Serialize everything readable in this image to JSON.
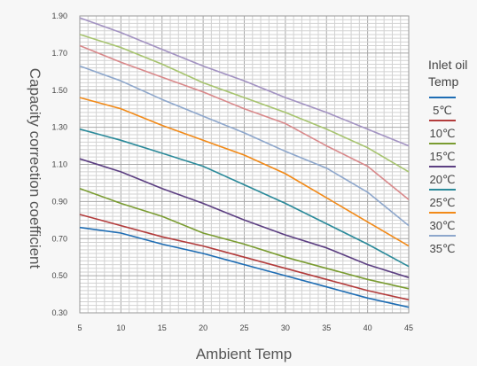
{
  "chart_data": {
    "type": "line",
    "xlabel": "Ambient Temp",
    "ylabel": "Capacity correction coefficient",
    "xlim": [
      5,
      45
    ],
    "ylim": [
      0.3,
      1.9
    ],
    "xticks": [
      5,
      10,
      15,
      20,
      25,
      30,
      35,
      40,
      45
    ],
    "yticks": [
      "0.30",
      "0.50",
      "0.70",
      "0.90",
      "1.10",
      "1.30",
      "1.50",
      "1.70",
      "1.90"
    ],
    "grid": true,
    "legend": {
      "placement": "right",
      "title_lines": [
        "Inlet oil",
        "Temp"
      ]
    },
    "series": [
      {
        "name": "5℃",
        "color": "#1e6db4",
        "x": [
          5,
          10,
          15,
          20,
          25,
          30,
          35,
          40,
          45
        ],
        "y": [
          0.76,
          0.73,
          0.67,
          0.62,
          0.56,
          0.5,
          0.44,
          0.38,
          0.33
        ]
      },
      {
        "name": "10℃",
        "color": "#b33c3c",
        "x": [
          5,
          10,
          15,
          20,
          25,
          30,
          35,
          40,
          45
        ],
        "y": [
          0.83,
          0.77,
          0.71,
          0.66,
          0.6,
          0.54,
          0.48,
          0.42,
          0.37
        ]
      },
      {
        "name": "15℃",
        "color": "#7a9c31",
        "x": [
          5,
          10,
          15,
          20,
          25,
          30,
          35,
          40,
          45
        ],
        "y": [
          0.97,
          0.89,
          0.82,
          0.73,
          0.67,
          0.6,
          0.54,
          0.48,
          0.43
        ]
      },
      {
        "name": "20℃",
        "color": "#5c3f82",
        "x": [
          5,
          10,
          15,
          20,
          25,
          30,
          35,
          40,
          45
        ],
        "y": [
          1.13,
          1.06,
          0.97,
          0.89,
          0.8,
          0.72,
          0.65,
          0.56,
          0.49
        ]
      },
      {
        "name": "25℃",
        "color": "#2b8a9a",
        "x": [
          5,
          10,
          15,
          20,
          25,
          30,
          35,
          40,
          45
        ],
        "y": [
          1.29,
          1.23,
          1.16,
          1.09,
          0.99,
          0.89,
          0.78,
          0.67,
          0.55
        ]
      },
      {
        "name": "30℃",
        "color": "#f28a18",
        "x": [
          5,
          10,
          15,
          20,
          25,
          30,
          35,
          40,
          45
        ],
        "y": [
          1.46,
          1.4,
          1.31,
          1.23,
          1.15,
          1.05,
          0.92,
          0.79,
          0.66
        ]
      },
      {
        "name": "35℃",
        "color": "#8ea7cc",
        "x": [
          5,
          10,
          15,
          20,
          25,
          30,
          35,
          40,
          45
        ],
        "y": [
          1.63,
          1.55,
          1.45,
          1.36,
          1.27,
          1.17,
          1.08,
          0.95,
          0.77
        ]
      },
      {
        "name": "",
        "color": "#d9898b",
        "x": [
          5,
          10,
          15,
          20,
          25,
          30,
          35,
          40,
          45
        ],
        "y": [
          1.74,
          1.65,
          1.57,
          1.49,
          1.4,
          1.32,
          1.2,
          1.09,
          0.91
        ]
      },
      {
        "name": "",
        "color": "#a7c46f",
        "x": [
          5,
          10,
          15,
          20,
          25,
          30,
          35,
          40,
          45
        ],
        "y": [
          1.8,
          1.73,
          1.64,
          1.54,
          1.46,
          1.38,
          1.29,
          1.19,
          1.06
        ]
      },
      {
        "name": "",
        "color": "#a393c2",
        "x": [
          5,
          10,
          15,
          20,
          25,
          30,
          35,
          40,
          45
        ],
        "y": [
          1.89,
          1.81,
          1.72,
          1.63,
          1.55,
          1.46,
          1.38,
          1.29,
          1.2
        ]
      }
    ]
  }
}
